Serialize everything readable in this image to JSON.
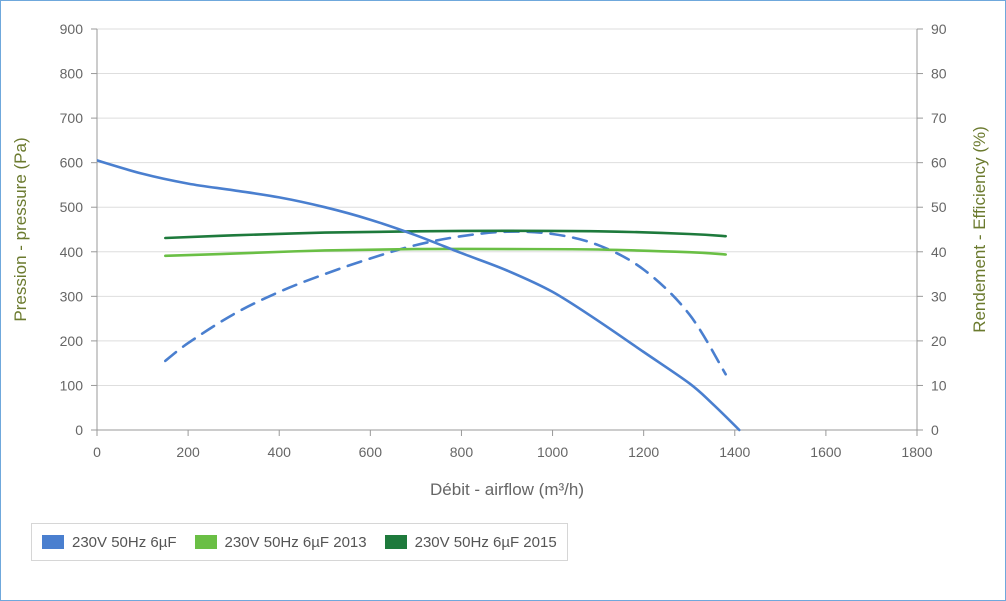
{
  "chart_data": {
    "type": "line",
    "title": "",
    "xlabel": "Débit - airflow (m³/h)",
    "ylabel_left": "Pression - pressure (Pa)",
    "ylabel_right": "Rendement - Efficiency (%)",
    "xlim": [
      0,
      1800
    ],
    "ylim_left": [
      0,
      900
    ],
    "ylim_right": [
      0,
      90
    ],
    "x_ticks": [
      "0",
      "200",
      "400",
      "600",
      "800",
      "1000",
      "1200",
      "1400",
      "1600",
      "1800"
    ],
    "y_left_ticks": [
      "0",
      "100",
      "200",
      "300",
      "400",
      "500",
      "600",
      "700",
      "800",
      "900"
    ],
    "y_right_ticks": [
      "0",
      "10",
      "20",
      "30",
      "40",
      "50",
      "60",
      "70",
      "80",
      "90"
    ],
    "grid": true,
    "legend_position": "bottom-left",
    "series": [
      {
        "name": "230V 50Hz 6µF",
        "color": "#4a7fcf",
        "axis": "left",
        "style": "solid",
        "x": [
          0,
          100,
          200,
          300,
          400,
          500,
          600,
          700,
          800,
          900,
          1000,
          1100,
          1200,
          1300,
          1350,
          1410
        ],
        "y": [
          605,
          575,
          553,
          538,
          522,
          500,
          472,
          437,
          397,
          358,
          310,
          245,
          175,
          105,
          60,
          0
        ]
      },
      {
        "name": "",
        "color": "#4a7fcf",
        "axis": "right",
        "style": "dashed",
        "x": [
          150,
          200,
          300,
          400,
          500,
          600,
          700,
          800,
          900,
          1000,
          1100,
          1200,
          1300,
          1380
        ],
        "y": [
          15.5,
          19.5,
          26,
          31,
          35,
          38.5,
          41.5,
          43.5,
          44.5,
          44,
          41.5,
          36,
          26,
          12.5
        ]
      },
      {
        "name": "230V 50Hz 6µF 2013",
        "color": "#6abf45",
        "axis": "left",
        "style": "solid",
        "x": [
          150,
          300,
          500,
          700,
          900,
          1100,
          1300,
          1380
        ],
        "y": [
          391,
          396,
          403,
          406,
          406,
          405,
          399,
          394
        ]
      },
      {
        "name": "230V 50Hz 6µF 2015",
        "color": "#1e7a3c",
        "axis": "left",
        "style": "solid",
        "x": [
          150,
          300,
          500,
          700,
          900,
          1100,
          1300,
          1380
        ],
        "y": [
          431,
          437,
          443,
          446,
          447,
          446,
          440,
          435
        ]
      }
    ]
  },
  "legend": [
    {
      "label": "230V 50Hz 6µF",
      "color": "#4a7fcf"
    },
    {
      "label": "230V 50Hz 6µF 2013",
      "color": "#6abf45"
    },
    {
      "label": "230V 50Hz 6µF 2015",
      "color": "#1e7a3c"
    }
  ]
}
